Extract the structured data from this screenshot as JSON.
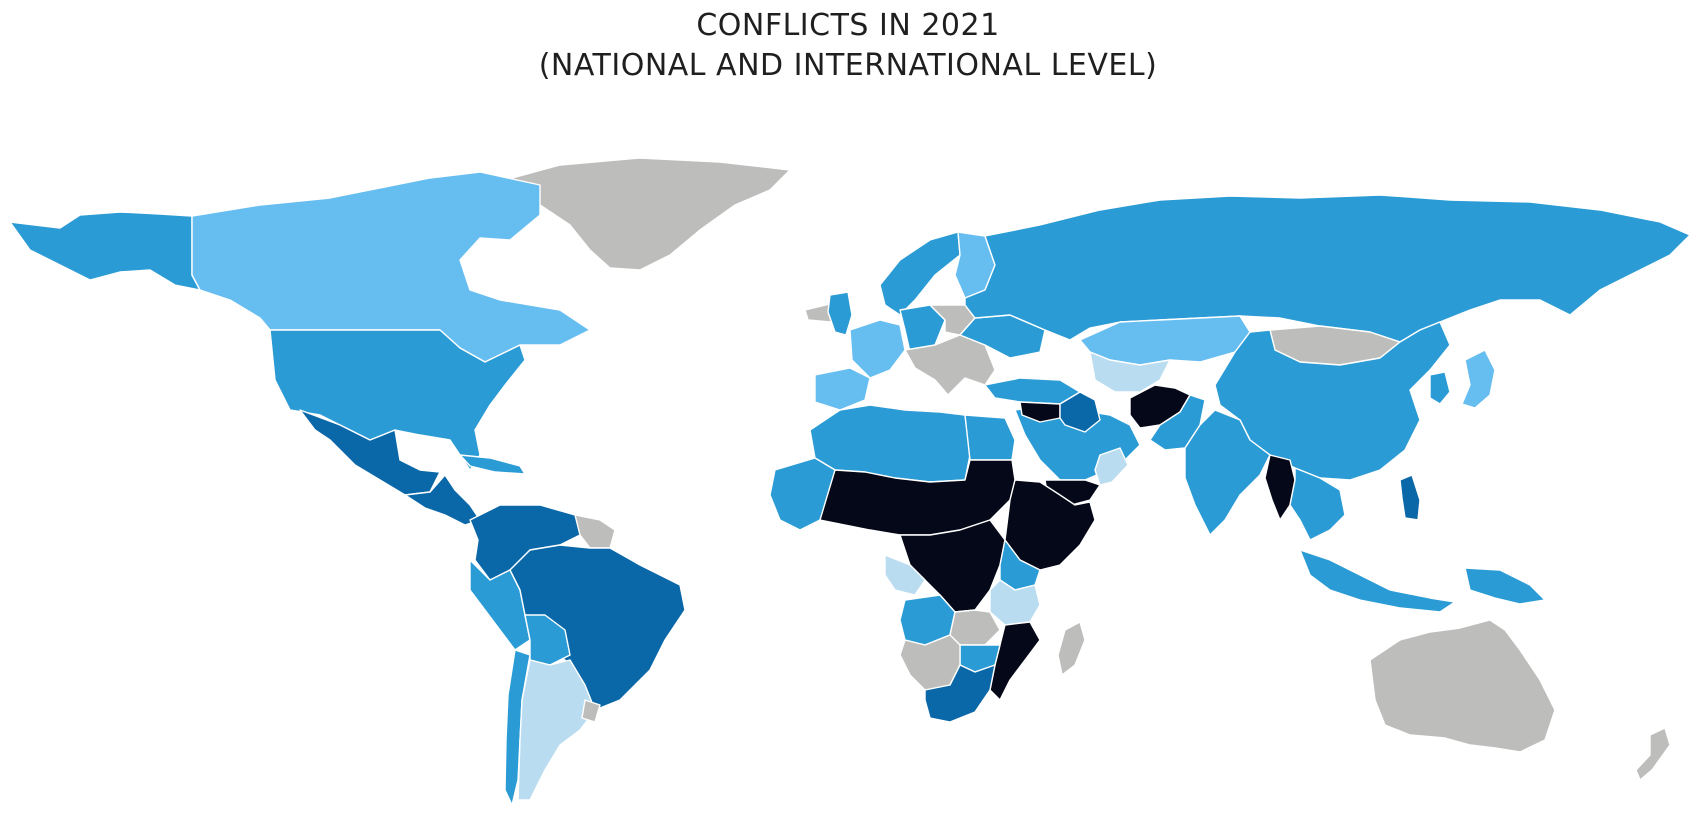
{
  "title": {
    "line1": "CONFLICTS IN 2021",
    "line2": "(NATIONAL AND INTERNATIONAL LEVEL)"
  },
  "palette": {
    "highest": "#050818",
    "high": "#0b68a8",
    "medium": "#2a9bd4",
    "low": "#66bdf0",
    "lowest": "#b9dcf0",
    "no_data": "#bdbdbb"
  },
  "regions": [
    {
      "id": "greenland",
      "level": "no_data"
    },
    {
      "id": "canada",
      "level": "low"
    },
    {
      "id": "alaska",
      "level": "medium"
    },
    {
      "id": "usa",
      "level": "medium"
    },
    {
      "id": "mexico",
      "level": "high"
    },
    {
      "id": "central-america",
      "level": "high"
    },
    {
      "id": "caribbean",
      "level": "medium"
    },
    {
      "id": "venezuela-colombia",
      "level": "high"
    },
    {
      "id": "guianas",
      "level": "no_data"
    },
    {
      "id": "brazil",
      "level": "high"
    },
    {
      "id": "peru",
      "level": "medium"
    },
    {
      "id": "bolivia",
      "level": "medium"
    },
    {
      "id": "argentina",
      "level": "lowest"
    },
    {
      "id": "chile",
      "level": "medium"
    },
    {
      "id": "uruguay",
      "level": "no_data"
    },
    {
      "id": "iceland",
      "level": "no_data"
    },
    {
      "id": "uk",
      "level": "medium"
    },
    {
      "id": "scandinavia",
      "level": "medium"
    },
    {
      "id": "finland",
      "level": "low"
    },
    {
      "id": "western-europe",
      "level": "low"
    },
    {
      "id": "iberia",
      "level": "low"
    },
    {
      "id": "central-europe",
      "level": "medium"
    },
    {
      "id": "poland",
      "level": "no_data"
    },
    {
      "id": "italy-balkans",
      "level": "no_data"
    },
    {
      "id": "ukraine",
      "level": "medium"
    },
    {
      "id": "turkey",
      "level": "medium"
    },
    {
      "id": "russia",
      "level": "medium"
    },
    {
      "id": "kazakhstan",
      "level": "low"
    },
    {
      "id": "central-asia",
      "level": "lowest"
    },
    {
      "id": "mongolia",
      "level": "no_data"
    },
    {
      "id": "china",
      "level": "medium"
    },
    {
      "id": "japan",
      "level": "low"
    },
    {
      "id": "korea",
      "level": "medium"
    },
    {
      "id": "middle-east",
      "level": "medium"
    },
    {
      "id": "syria",
      "level": "highest"
    },
    {
      "id": "iraq",
      "level": "high"
    },
    {
      "id": "yemen",
      "level": "highest"
    },
    {
      "id": "oman",
      "level": "lowest"
    },
    {
      "id": "afghanistan",
      "level": "highest"
    },
    {
      "id": "pakistan",
      "level": "medium"
    },
    {
      "id": "india",
      "level": "medium"
    },
    {
      "id": "myanmar",
      "level": "highest"
    },
    {
      "id": "indochina",
      "level": "medium"
    },
    {
      "id": "philippines",
      "level": "high"
    },
    {
      "id": "indonesia",
      "level": "medium"
    },
    {
      "id": "papua",
      "level": "medium"
    },
    {
      "id": "australia",
      "level": "no_data"
    },
    {
      "id": "new-zealand",
      "level": "no_data"
    },
    {
      "id": "north-africa",
      "level": "medium"
    },
    {
      "id": "egypt",
      "level": "medium"
    },
    {
      "id": "sahel",
      "level": "highest"
    },
    {
      "id": "west-africa",
      "level": "medium"
    },
    {
      "id": "sudan-ethiopia-somalia",
      "level": "highest"
    },
    {
      "id": "central-africa",
      "level": "highest"
    },
    {
      "id": "gabon-congo",
      "level": "lowest"
    },
    {
      "id": "east-africa",
      "level": "medium"
    },
    {
      "id": "tanzania",
      "level": "lowest"
    },
    {
      "id": "angola",
      "level": "medium"
    },
    {
      "id": "zambia",
      "level": "no_data"
    },
    {
      "id": "mozambique",
      "level": "highest"
    },
    {
      "id": "namibia-botswana",
      "level": "no_data"
    },
    {
      "id": "zimbabwe",
      "level": "medium"
    },
    {
      "id": "south-africa",
      "level": "high"
    },
    {
      "id": "madagascar",
      "level": "no_data"
    }
  ]
}
